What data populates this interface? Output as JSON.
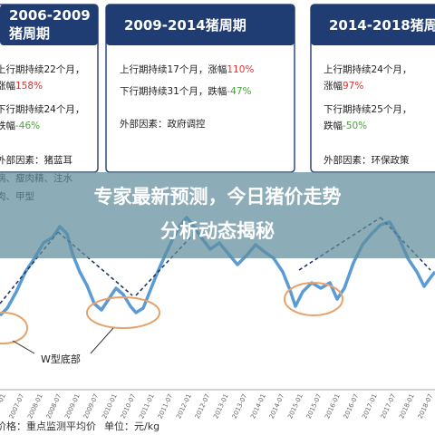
{
  "panels": [
    {
      "title_lines": [
        "2006-2009",
        "猪周期"
      ],
      "rise_lines": [
        "上行期持续22个月，",
        "涨幅"
      ],
      "rise_pct": "158%",
      "fall_lines": [
        "下行期持续24个月，",
        "跌幅"
      ],
      "fall_pct": "-46%",
      "factor_lines": [
        "外部因素：猪蓝耳",
        "病、瘦肉精、注水",
        "肉、甲型"
      ]
    },
    {
      "title_lines": [
        "2009-2014猪周期"
      ],
      "rise_lines": [
        "上行期持续17个月，涨幅"
      ],
      "rise_pct": "110%",
      "fall_lines": [
        "下行期持续31个月，跌幅"
      ],
      "fall_pct": "-47%",
      "factor_lines": [
        "外部因素：政府调控"
      ]
    },
    {
      "title_lines": [
        "2014-2018猪周期"
      ],
      "rise_lines": [
        "上行期持续24个月，",
        "涨幅"
      ],
      "rise_pct": "97%",
      "fall_lines": [
        "下行期持续25个月，",
        "跌幅"
      ],
      "fall_pct": "-50%",
      "factor_lines": [
        "外部因素：环保政策"
      ]
    }
  ],
  "banner": {
    "lines": [
      "专家最新预测，今日猪价走势",
      "分析动态揭秘"
    ]
  },
  "annotation": "W型底部",
  "x_labels": [
    "2007-01",
    "2007-07",
    "2008-01",
    "2008-07",
    "2009-01",
    "2009-07",
    "2010-01",
    "2010-07",
    "2011-01",
    "2011-07",
    "2012-01",
    "2012-07",
    "2013-01",
    "2013-07",
    "2014-01",
    "2014-07",
    "2015-01",
    "2015-07",
    "2016-01",
    "2016-07",
    "2017-01",
    "2017-07",
    "2018-01",
    "2018-07"
  ],
  "legend": "价格：重点监测平均价",
  "unit": "单位：元/kg"
}
